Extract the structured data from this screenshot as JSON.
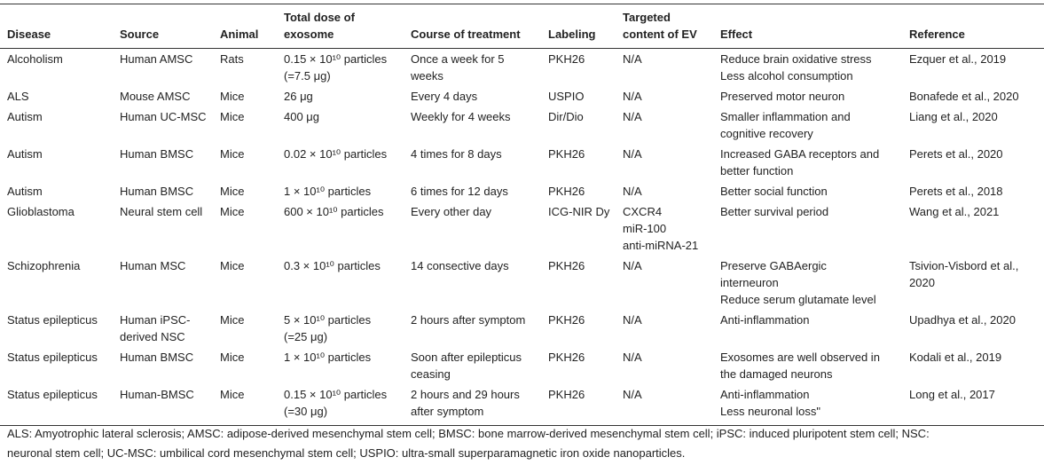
{
  "table": {
    "header": [
      "Disease",
      "Source",
      "Animal",
      "Total dose of exosome",
      "Course of treatment",
      "Labeling",
      "Targeted content of EV",
      "Effect",
      "Reference"
    ],
    "rows": [
      [
        [
          "Alcoholism"
        ],
        [
          "Human AMSC"
        ],
        [
          "Rats"
        ],
        [
          "0.15 × 10¹⁰ particles",
          "(=7.5 μg)"
        ],
        [
          "Once a week for 5",
          "weeks"
        ],
        [
          "PKH26"
        ],
        [
          "N/A"
        ],
        [
          "Reduce brain oxidative stress",
          "Less alcohol consumption"
        ],
        [
          "Ezquer et al., 2019"
        ]
      ],
      [
        [
          "ALS"
        ],
        [
          "Mouse AMSC"
        ],
        [
          "Mice"
        ],
        [
          "26 μg"
        ],
        [
          "Every 4 days"
        ],
        [
          "USPIO"
        ],
        [
          "N/A"
        ],
        [
          "Preserved motor neuron"
        ],
        [
          "Bonafede et al., 2020"
        ]
      ],
      [
        [
          "Autism"
        ],
        [
          "Human UC-MSC"
        ],
        [
          "Mice"
        ],
        [
          "400 μg"
        ],
        [
          "Weekly for 4 weeks"
        ],
        [
          "Dir/Dio"
        ],
        [
          "N/A"
        ],
        [
          "Smaller inflammation and",
          "cognitive recovery"
        ],
        [
          "Liang et al., 2020"
        ]
      ],
      [
        [
          "Autism"
        ],
        [
          "Human BMSC"
        ],
        [
          "Mice"
        ],
        [
          "0.02 × 10¹⁰ particles"
        ],
        [
          "4 times for 8 days"
        ],
        [
          "PKH26"
        ],
        [
          "N/A"
        ],
        [
          "Increased GABA receptors and",
          "better function"
        ],
        [
          "Perets et al., 2020"
        ]
      ],
      [
        [
          "Autism"
        ],
        [
          "Human BMSC"
        ],
        [
          "Mice"
        ],
        [
          "1 × 10¹⁰ particles"
        ],
        [
          "6 times for 12 days"
        ],
        [
          "PKH26"
        ],
        [
          "N/A"
        ],
        [
          "Better social function"
        ],
        [
          "Perets et al., 2018"
        ]
      ],
      [
        [
          "Glioblastoma"
        ],
        [
          "Neural stem cell"
        ],
        [
          "Mice"
        ],
        [
          "600 × 10¹⁰ particles"
        ],
        [
          "Every other day"
        ],
        [
          "ICG-NIR Dy"
        ],
        [
          "CXCR4",
          "miR-100",
          "anti-miRNA-21"
        ],
        [
          "Better survival period"
        ],
        [
          "Wang et al., 2021"
        ]
      ],
      [
        [
          "Schizophrenia"
        ],
        [
          "Human MSC"
        ],
        [
          "Mice"
        ],
        [
          "0.3 × 10¹⁰ particles"
        ],
        [
          "14 consective days"
        ],
        [
          "PKH26"
        ],
        [
          "N/A"
        ],
        [
          "Preserve GABAergic",
          "interneuron",
          "Reduce serum glutamate level"
        ],
        [
          "Tsivion-Visbord et al.,",
          "2020"
        ]
      ],
      [
        [
          "Status epilepticus"
        ],
        [
          "Human iPSC-",
          "derived NSC"
        ],
        [
          "Mice"
        ],
        [
          "5 × 10¹⁰ particles",
          "(=25 μg)"
        ],
        [
          "2 hours after symptom"
        ],
        [
          "PKH26"
        ],
        [
          "N/A"
        ],
        [
          "Anti-inflammation"
        ],
        [
          "Upadhya et al., 2020"
        ]
      ],
      [
        [
          "Status epilepticus"
        ],
        [
          "Human BMSC"
        ],
        [
          "Mice"
        ],
        [
          "1 × 10¹⁰ particles"
        ],
        [
          "Soon after epilepticus",
          "ceasing"
        ],
        [
          "PKH26"
        ],
        [
          "N/A"
        ],
        [
          "Exosomes are well observed in",
          "the damaged neurons"
        ],
        [
          "Kodali et al., 2019"
        ]
      ],
      [
        [
          "Status epilepticus"
        ],
        [
          "Human-BMSC"
        ],
        [
          "Mice"
        ],
        [
          "0.15 × 10¹⁰ particles",
          "(=30 μg)"
        ],
        [
          "2 hours and 29 hours",
          "after symptom"
        ],
        [
          "PKH26"
        ],
        [
          "N/A"
        ],
        [
          "Anti-inflammation",
          "Less neuronal loss\""
        ],
        [
          "Long et al., 2017"
        ]
      ]
    ],
    "footnote": [
      "ALS: Amyotrophic lateral sclerosis; AMSC: adipose-derived mesenchymal stem cell; BMSC: bone marrow-derived mesenchymal stem cell; iPSC: induced pluripotent stem cell; NSC:",
      "neuronal stem cell; UC-MSC: umbilical cord mesenchymal stem cell; USPIO: ultra-small superparamagnetic iron oxide nanoparticles."
    ]
  }
}
